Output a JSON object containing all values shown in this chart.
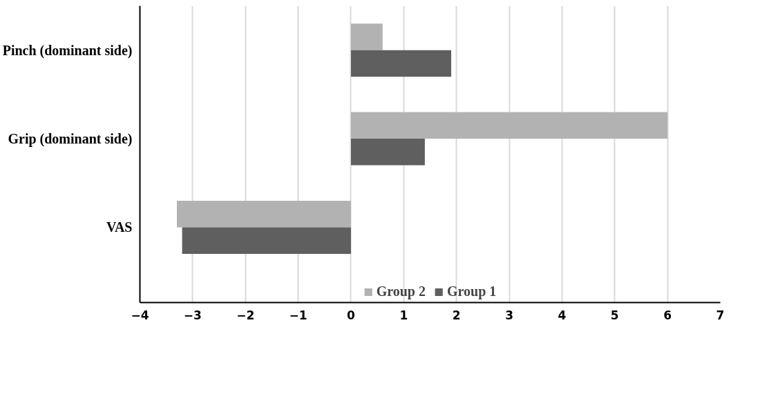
{
  "chart_data": {
    "type": "bar",
    "orientation": "horizontal",
    "categories": [
      "Pinch (dominant side)",
      "Grip (dominant side)",
      "VAS"
    ],
    "series": [
      {
        "name": "Group 2",
        "color": "#b2b2b2",
        "values": [
          0.6,
          6.0,
          -3.3
        ]
      },
      {
        "name": "Group 1",
        "color": "#5f5f5f",
        "values": [
          1.9,
          1.4,
          -3.2
        ]
      }
    ],
    "xlim": [
      -4,
      7
    ],
    "xticks": [
      -4,
      -3,
      -2,
      -1,
      0,
      1,
      2,
      3,
      4,
      5,
      6,
      7
    ],
    "grid": "x",
    "legend": "bottom"
  }
}
